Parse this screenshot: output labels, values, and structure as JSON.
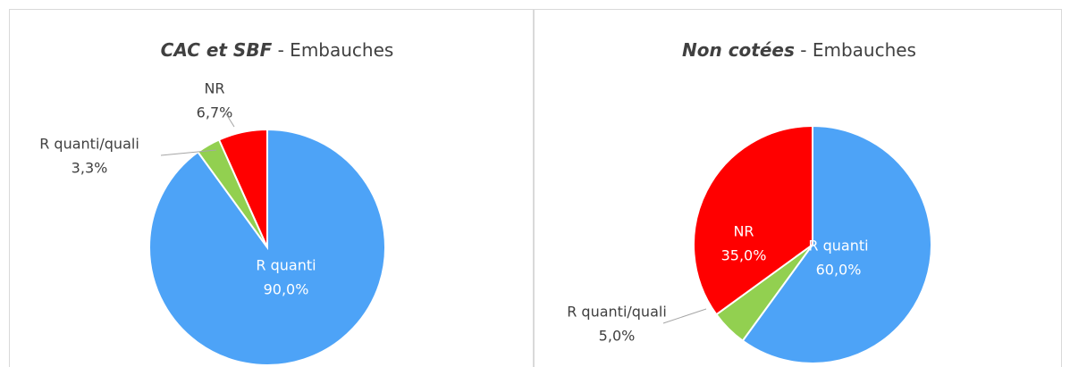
{
  "chart_data": [
    {
      "type": "pie",
      "title": {
        "emphasis": "CAC et SBF",
        "rest": "- Embauches"
      },
      "categories": [
        "R quanti",
        "R quanti/quali",
        "NR"
      ],
      "values": [
        90.0,
        3.3,
        6.7
      ],
      "value_labels": [
        "90,0%",
        "3,3%",
        "6,7%"
      ],
      "colors": [
        "#4da3f7",
        "#92d050",
        "#ff0000"
      ]
    },
    {
      "type": "pie",
      "title": {
        "emphasis": "Non cotées",
        "rest": "- Embauches"
      },
      "categories": [
        "R quanti",
        "R quanti/quali",
        "NR"
      ],
      "values": [
        60.0,
        5.0,
        35.0
      ],
      "value_labels": [
        "60,0%",
        "5,0%",
        "35,0%"
      ],
      "colors": [
        "#4da3f7",
        "#92d050",
        "#ff0000"
      ]
    }
  ]
}
